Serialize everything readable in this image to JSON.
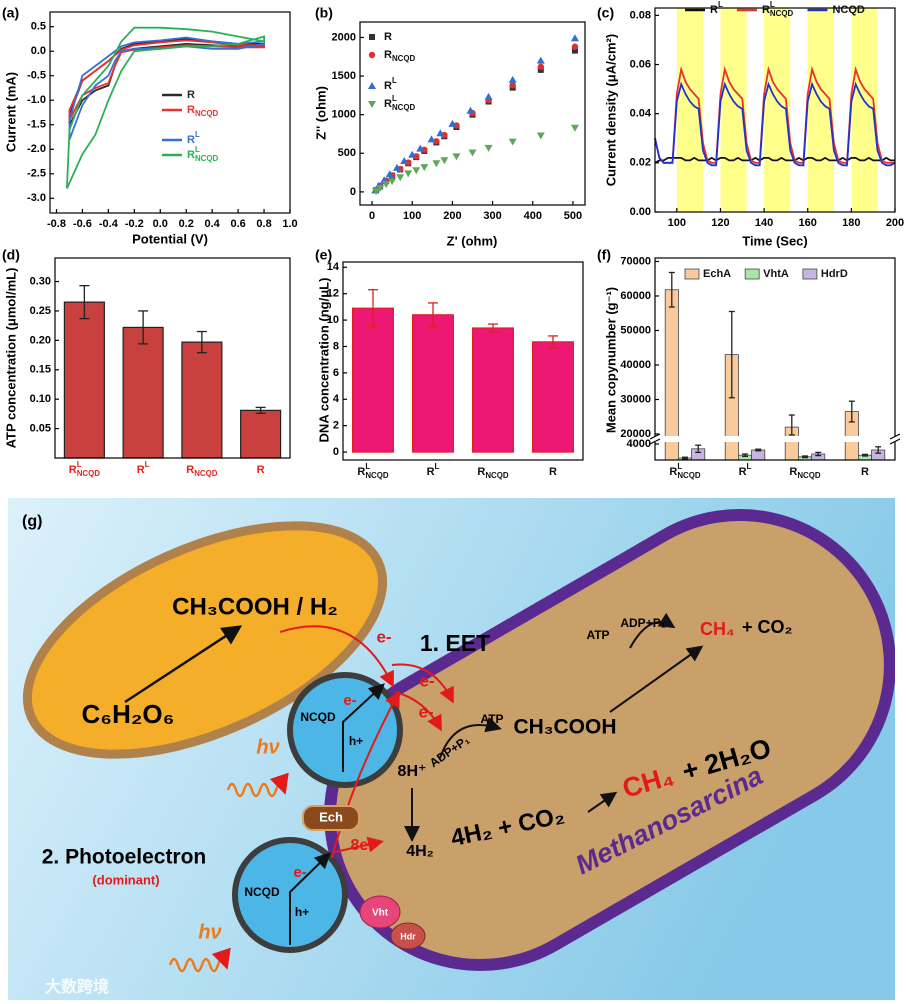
{
  "chart_data": [
    {
      "panel_label": "(a)",
      "type": "line",
      "xlabel": "Potential (V)",
      "ylabel": "Current (mA)",
      "xlim": [
        -0.85,
        1.0
      ],
      "xticks": [
        -0.8,
        -0.6,
        -0.4,
        -0.2,
        {
          "value": 0,
          "label": "0.0"
        },
        0.2,
        0.4,
        0.6,
        0.8,
        {
          "value": 1,
          "label": "1.0"
        }
      ],
      "ylim": [
        -3.3,
        0.8
      ],
      "yticks": [
        0.5,
        {
          "value": 0,
          "label": "0.0"
        },
        -0.5,
        {
          "value": -1,
          "label": "-1.0"
        },
        -1.5,
        {
          "value": -2,
          "label": "-2.0"
        },
        -2.5,
        {
          "value": -3,
          "label": "-3.0"
        }
      ],
      "legend": "center right",
      "series": [
        {
          "name": "R",
          "color": "#2b2b2b",
          "x": [
            -0.7,
            -0.6,
            -0.5,
            -0.4,
            -0.35,
            -0.3,
            -0.2,
            0,
            0.2,
            0.4,
            0.6,
            0.8,
            0.8,
            0.6,
            0.4,
            0.2,
            0,
            -0.2,
            -0.3,
            -0.4,
            -0.5,
            -0.6,
            -0.7,
            -0.7
          ],
          "values": [
            -1.5,
            -1.0,
            -0.8,
            -0.7,
            -0.3,
            0.0,
            0.05,
            0.1,
            0.15,
            0.12,
            0.1,
            0.1,
            0.15,
            0.15,
            0.2,
            0.25,
            0.2,
            0.15,
            0.05,
            -0.2,
            -0.4,
            -0.6,
            -1.3,
            -1.5
          ]
        },
        {
          "name": "R",
          "sub": "NCQD",
          "color": "#e8322f",
          "x": [
            -0.7,
            -0.6,
            -0.5,
            -0.4,
            -0.35,
            -0.3,
            -0.2,
            0,
            0.2,
            0.4,
            0.6,
            0.8,
            0.8,
            0.6,
            0.4,
            0.2,
            0,
            -0.2,
            -0.3,
            -0.4,
            -0.5,
            -0.6,
            -0.7,
            -0.7
          ],
          "values": [
            -1.4,
            -0.9,
            -0.75,
            -0.65,
            -0.3,
            -0.02,
            0.03,
            0.08,
            0.12,
            0.1,
            0.08,
            0.08,
            0.12,
            0.12,
            0.18,
            0.22,
            0.18,
            0.12,
            0.03,
            -0.2,
            -0.4,
            -0.6,
            -1.2,
            -1.4
          ]
        },
        {
          "name": "R",
          "sup": "L",
          "color": "#3a6fd8",
          "x": [
            -0.7,
            -0.6,
            -0.5,
            -0.4,
            -0.35,
            -0.3,
            -0.2,
            0,
            0.2,
            0.4,
            0.6,
            0.8,
            0.8,
            0.6,
            0.4,
            0.2,
            0,
            -0.2,
            -0.3,
            -0.4,
            -0.5,
            -0.6,
            -0.7,
            -0.7
          ],
          "values": [
            -1.8,
            -1.1,
            -0.7,
            -0.5,
            -0.2,
            0.0,
            0.05,
            0.05,
            0.1,
            0.05,
            0.05,
            0.15,
            0.2,
            0.15,
            0.2,
            0.28,
            0.22,
            0.18,
            0.1,
            -0.1,
            -0.3,
            -0.5,
            -1.4,
            -1.8
          ]
        },
        {
          "name": "R",
          "sup": "L",
          "sub": "NCQD",
          "color": "#2bb05a",
          "x": [
            -0.72,
            -0.6,
            -0.5,
            -0.4,
            -0.35,
            -0.3,
            -0.2,
            0,
            0.2,
            0.4,
            0.6,
            0.8,
            0.8,
            0.6,
            0.4,
            0.2,
            0,
            -0.2,
            -0.3,
            -0.4,
            -0.5,
            -0.6,
            -0.7,
            -0.72
          ],
          "values": [
            -2.8,
            -2.1,
            -1.7,
            -1.0,
            -0.7,
            -0.4,
            0.0,
            0.05,
            0.1,
            0.1,
            0.15,
            0.3,
            0.2,
            0.3,
            0.4,
            0.45,
            0.48,
            0.48,
            0.2,
            -0.3,
            -0.6,
            -0.9,
            -1.6,
            -2.8
          ]
        }
      ]
    },
    {
      "panel_label": "(b)",
      "type": "scatter",
      "xlabel": "Z' (ohm)",
      "ylabel": "Z'' (ohm)",
      "xlim": [
        -30,
        530
      ],
      "xticks": [
        0,
        100,
        200,
        300,
        400,
        500
      ],
      "ylim": [
        -170,
        2200
      ],
      "yticks": [
        0,
        500,
        1000,
        1500,
        2000
      ],
      "legend": "upper left",
      "series": [
        {
          "name": "R",
          "color": "#333333",
          "marker": "square",
          "x": [
            10,
            20,
            35,
            50,
            70,
            90,
            110,
            130,
            160,
            180,
            210,
            250,
            290,
            350,
            420,
            505
          ],
          "values": [
            20,
            70,
            140,
            210,
            290,
            370,
            450,
            530,
            640,
            720,
            840,
            1000,
            1170,
            1350,
            1580,
            1830
          ]
        },
        {
          "name": "R",
          "sub": "NCQD",
          "color": "#e03030",
          "marker": "circle",
          "x": [
            10,
            20,
            35,
            50,
            70,
            90,
            110,
            130,
            160,
            180,
            210,
            250,
            290,
            350,
            420,
            505
          ],
          "values": [
            20,
            75,
            145,
            215,
            295,
            380,
            460,
            545,
            655,
            735,
            860,
            1020,
            1190,
            1380,
            1620,
            1880
          ]
        },
        {
          "name": "R",
          "sup": "L",
          "color": "#2f6fd6",
          "marker": "triangle",
          "x": [
            8,
            17,
            30,
            44,
            62,
            80,
            100,
            120,
            148,
            170,
            200,
            245,
            290,
            350,
            420,
            505
          ],
          "values": [
            20,
            80,
            150,
            230,
            310,
            400,
            480,
            560,
            680,
            760,
            880,
            1050,
            1230,
            1450,
            1700,
            1990
          ]
        },
        {
          "name": "R",
          "sup": "L",
          "sub": "NCQD",
          "color": "#5fa85a",
          "marker": "triangle-down",
          "x": [
            10,
            20,
            35,
            50,
            70,
            90,
            110,
            130,
            160,
            180,
            210,
            250,
            290,
            350,
            420,
            505
          ],
          "values": [
            10,
            50,
            100,
            140,
            190,
            240,
            280,
            320,
            370,
            410,
            460,
            510,
            570,
            650,
            730,
            830
          ]
        }
      ]
    },
    {
      "panel_label": "(c)",
      "type": "line",
      "xlabel": "Time (Sec)",
      "ylabel": "Current density (μA/cm²)",
      "xlim": [
        90,
        200
      ],
      "xticks": [
        100,
        120,
        140,
        160,
        180,
        200
      ],
      "ylim": [
        0,
        0.083
      ],
      "yticks": [
        {
          "value": 0,
          "label": "0.00"
        },
        0.02,
        0.04,
        0.06,
        0.08
      ],
      "legend": "upper center",
      "highlight_color": "#ffff8c",
      "highlight": [
        [
          100,
          112
        ],
        [
          120,
          132
        ],
        [
          140,
          152
        ],
        [
          160,
          172
        ],
        [
          180,
          192
        ]
      ],
      "x": [
        90,
        92,
        94,
        96,
        98,
        100,
        102,
        104,
        106,
        108,
        110,
        112,
        114,
        116,
        118,
        120,
        122,
        124,
        126,
        128,
        130,
        132,
        134,
        136,
        138,
        140,
        142,
        144,
        146,
        148,
        150,
        152,
        154,
        156,
        158,
        160,
        162,
        164,
        166,
        168,
        170,
        172,
        174,
        176,
        178,
        180,
        182,
        184,
        186,
        188,
        190,
        192,
        194,
        196,
        198,
        200
      ],
      "series": [
        {
          "name": "R",
          "sup": "L",
          "color": "#111111",
          "values": [
            0.02,
            0.021,
            0.021,
            0.022,
            0.022,
            0.022,
            0.022,
            0.021,
            0.021,
            0.022,
            0.021,
            0.021,
            0.021,
            0.022,
            0.021,
            0.022,
            0.022,
            0.021,
            0.021,
            0.022,
            0.021,
            0.021,
            0.021,
            0.022,
            0.021,
            0.022,
            0.022,
            0.021,
            0.021,
            0.022,
            0.021,
            0.021,
            0.021,
            0.022,
            0.021,
            0.022,
            0.022,
            0.021,
            0.021,
            0.022,
            0.021,
            0.021,
            0.021,
            0.022,
            0.021,
            0.022,
            0.022,
            0.021,
            0.021,
            0.022,
            0.021,
            0.021,
            0.021,
            0.022,
            0.021,
            0.021
          ]
        },
        {
          "name": "R",
          "sup": "L",
          "sub": "NCQD",
          "color": "#e8322f",
          "values": [
            0.03,
            0.022,
            0.02,
            0.02,
            0.02,
            0.048,
            0.058,
            0.053,
            0.05,
            0.048,
            0.046,
            0.028,
            0.021,
            0.02,
            0.02,
            0.048,
            0.058,
            0.053,
            0.05,
            0.048,
            0.046,
            0.028,
            0.021,
            0.02,
            0.02,
            0.048,
            0.058,
            0.053,
            0.05,
            0.048,
            0.046,
            0.028,
            0.021,
            0.02,
            0.02,
            0.048,
            0.058,
            0.053,
            0.05,
            0.048,
            0.046,
            0.028,
            0.021,
            0.02,
            0.02,
            0.048,
            0.058,
            0.053,
            0.05,
            0.048,
            0.046,
            0.028,
            0.021,
            0.02,
            0.02,
            0.02
          ]
        },
        {
          "name": "NCQD",
          "color": "#2233cc",
          "values": [
            0.03,
            0.022,
            0.02,
            0.02,
            0.02,
            0.045,
            0.052,
            0.048,
            0.045,
            0.043,
            0.042,
            0.025,
            0.02,
            0.019,
            0.019,
            0.045,
            0.052,
            0.048,
            0.045,
            0.043,
            0.042,
            0.025,
            0.02,
            0.019,
            0.019,
            0.045,
            0.052,
            0.048,
            0.045,
            0.043,
            0.042,
            0.025,
            0.02,
            0.019,
            0.019,
            0.045,
            0.052,
            0.048,
            0.045,
            0.043,
            0.042,
            0.025,
            0.02,
            0.019,
            0.019,
            0.045,
            0.052,
            0.048,
            0.045,
            0.043,
            0.042,
            0.025,
            0.02,
            0.019,
            0.019,
            0.02
          ]
        }
      ]
    },
    {
      "panel_label": "(d)",
      "type": "bar",
      "ylabel": "ATP concentration (μmol/mL)",
      "categories": [
        "R",
        "R",
        "R",
        "R"
      ],
      "category_sup": [
        "L",
        "L",
        null,
        null
      ],
      "category_sub": [
        "NCQD",
        null,
        "NCQD",
        null
      ],
      "category_color": "#e8221c",
      "values": [
        0.265,
        0.222,
        0.197,
        0.081
      ],
      "errors": [
        0.028,
        0.028,
        0.018,
        0.005
      ],
      "color": "#c8413f",
      "edge_color": "#222222",
      "error_color": "#222222",
      "ylim": [
        0,
        0.34
      ],
      "yticks": [
        0.05,
        {
          "value": 0.1,
          "label": "0.10"
        },
        0.15,
        {
          "value": 0.2,
          "label": "0.20"
        },
        0.25,
        {
          "value": 0.3,
          "label": "0.30"
        }
      ]
    },
    {
      "panel_label": "(e)",
      "type": "bar",
      "ylabel": "DNA concentration (ng/μL)",
      "categories": [
        "R",
        "R",
        "R",
        "R"
      ],
      "category_sup": [
        "L",
        "L",
        null,
        null
      ],
      "category_sub": [
        "NCQD",
        null,
        "NCQD",
        null
      ],
      "category_color": "#111111",
      "values": [
        10.9,
        10.4,
        9.4,
        8.35
      ],
      "errors": [
        1.4,
        0.9,
        0.3,
        0.45
      ],
      "color": "#ec1873",
      "edge_color": "#e02020",
      "error_color": "#e02020",
      "ylim": [
        -0.6,
        14.4
      ],
      "yticks": [
        0,
        2,
        4,
        6,
        8,
        10,
        12,
        14
      ]
    },
    {
      "panel_label": "(f)",
      "type": "grouped_bar",
      "ylabel": "Mean copynumber (g⁻¹)",
      "categories": [
        "R",
        "R",
        "R",
        "R"
      ],
      "category_sup": [
        "L",
        "L",
        null,
        null
      ],
      "category_sub": [
        "NCQD",
        null,
        "NCQD",
        null
      ],
      "category_color": "#111111",
      "ylim": [
        0,
        71000
      ],
      "ybreak": [
        4000,
        20000
      ],
      "yticks": [
        4000,
        20000,
        30000,
        40000,
        50000,
        60000,
        70000
      ],
      "legend": "upper center",
      "series": [
        {
          "name": "EchA",
          "color": "#f9cb9c",
          "values": [
            61800,
            43000,
            22000,
            26500
          ],
          "errors": [
            5000,
            12500,
            3500,
            3000
          ]
        },
        {
          "name": "VhtA",
          "color": "#a8e6a8",
          "values": [
            500,
            1200,
            800,
            1200
          ],
          "errors": [
            200,
            300,
            200,
            200
          ]
        },
        {
          "name": "HdrD",
          "color": "#c8b4e0",
          "values": [
            2800,
            2500,
            1500,
            2500
          ],
          "errors": [
            900,
            200,
            400,
            800
          ]
        }
      ]
    }
  ],
  "diagram": {
    "label": "(g)",
    "substrate": "CH₃COOH / H₂",
    "glucose": "C₆H₂O₆",
    "electrons": [
      "e-",
      "e-",
      "e-",
      "e-",
      "e-"
    ],
    "eet": "1. EET",
    "ncqd": [
      "NCQD",
      "NCQD"
    ],
    "holes": [
      "h+",
      "h+"
    ],
    "light": [
      "hν",
      "hν"
    ],
    "atp_synthesis": [
      "ADP+P₁",
      "ATP"
    ],
    "atp_use": [
      "ATP",
      "ADP+P₁"
    ],
    "acetate": "CH₃COOH",
    "methane_1": [
      "CH₄",
      "+ CO₂"
    ],
    "methane_2": [
      "CH₄",
      "+ 2H₂O"
    ],
    "hydrogenotrophic": "4H₂ + CO₂",
    "protons": "8H⁺",
    "hydrogen": "4H₂",
    "electron_8": "8e-",
    "ech": "Ech",
    "organism": "Methanosarcina",
    "photoelectron": "2. Photoelectron",
    "dominant": "(dominant)",
    "vht": "Vht",
    "hdr": "Hdr"
  },
  "watermark": "大数跨境"
}
